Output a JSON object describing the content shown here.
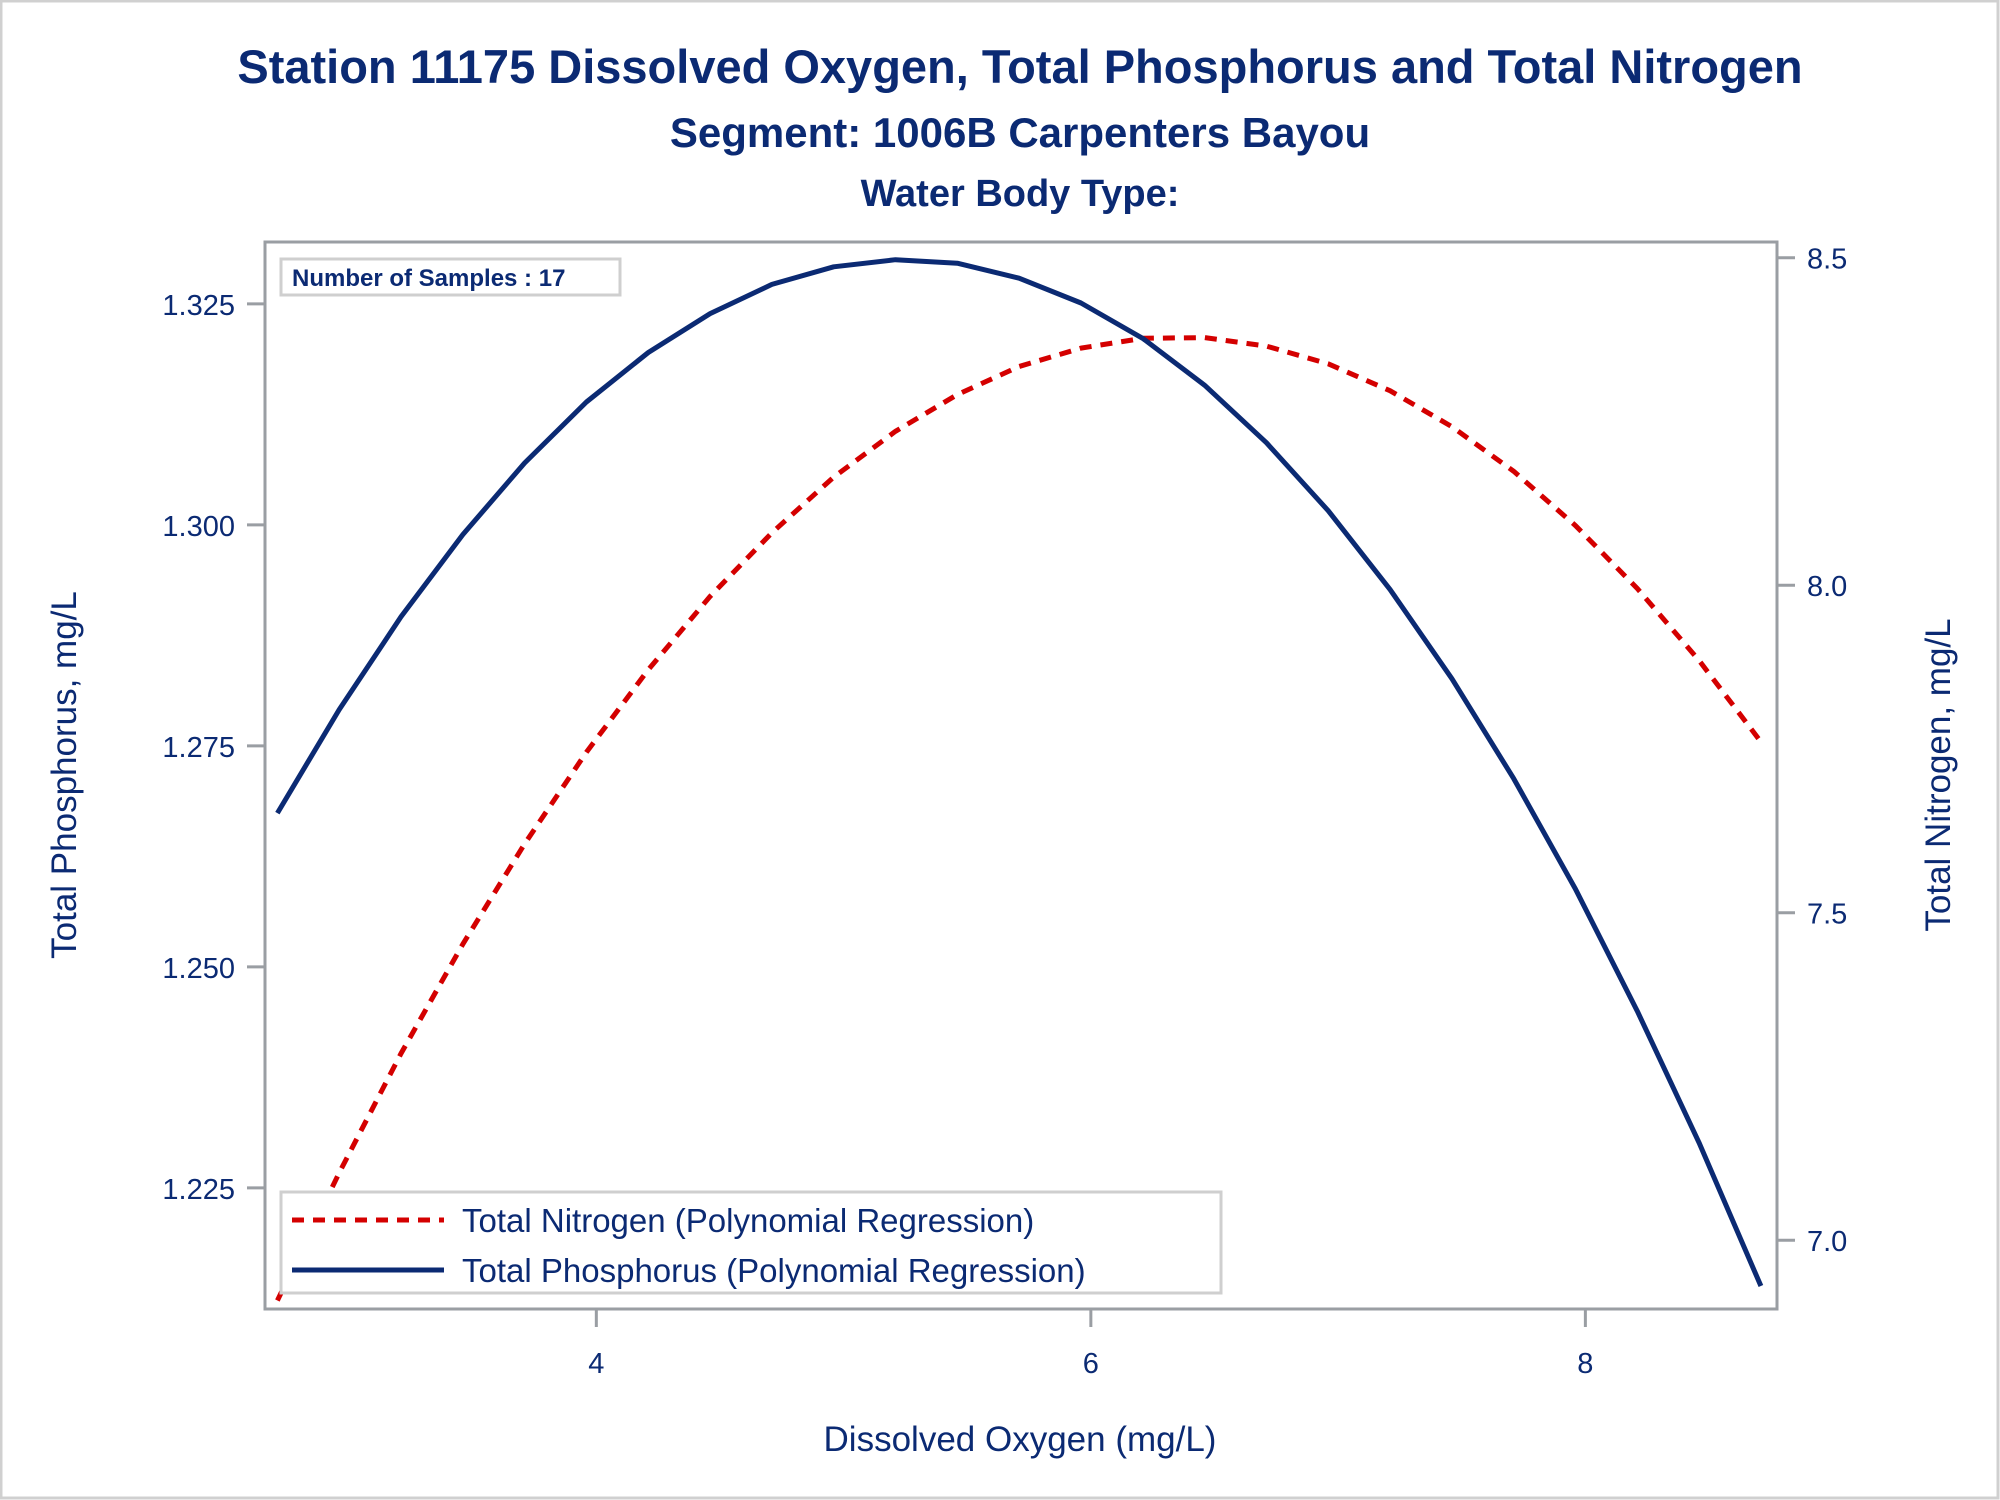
{
  "chart_data": {
    "type": "line",
    "title": "Station 11175  Dissolved Oxygen, Total Phosphorus and Total Nitrogen",
    "subtitle": "Segment: 1006B  Carpenters Bayou",
    "subtitle2": "Water Body Type:",
    "annotation": "Number of Samples : 17",
    "xlabel": "Dissolved Oxygen (mg/L)",
    "ylabel": "Total Phosphorus, mg/L",
    "y2label": "Total Nitrogen, mg/L",
    "xlim": [
      2.66,
      8.775
    ],
    "ylim": [
      1.2113,
      1.332
    ],
    "y2lim": [
      6.895,
      8.524
    ],
    "xticks": [
      "4",
      "6",
      "8"
    ],
    "yticks": [
      "1.225",
      "1.250",
      "1.275",
      "1.300",
      "1.325"
    ],
    "y2ticks": [
      "7.0",
      "7.5",
      "8.0",
      "8.5"
    ],
    "grid": false,
    "legend_position": "bottom-left",
    "x": [
      2.71,
      2.96,
      3.21,
      3.46,
      3.71,
      3.96,
      4.21,
      4.46,
      4.71,
      4.96,
      5.21,
      5.46,
      5.71,
      5.96,
      6.21,
      6.46,
      6.71,
      6.96,
      7.21,
      7.46,
      7.71,
      7.96,
      8.21,
      8.46,
      8.71
    ],
    "series": [
      {
        "name": "Total Nitrogen (Polynomial Regression)",
        "axis": "y2",
        "color": "#d40000",
        "style": "dashed",
        "values": [
          6.908,
          7.103,
          7.285,
          7.452,
          7.605,
          7.745,
          7.871,
          7.983,
          8.08,
          8.165,
          8.235,
          8.291,
          8.334,
          8.362,
          8.377,
          8.378,
          8.365,
          8.338,
          8.297,
          8.242,
          8.174,
          8.091,
          7.995,
          7.885,
          7.761
        ]
      },
      {
        "name": "Total Phosphorus (Polynomial Regression)",
        "axis": "y",
        "color": "#0b2a73",
        "style": "solid",
        "values": [
          1.2674,
          1.2791,
          1.2896,
          1.2989,
          1.307,
          1.3139,
          1.3195,
          1.3239,
          1.3272,
          1.3292,
          1.33,
          1.3296,
          1.3279,
          1.3251,
          1.3211,
          1.3158,
          1.3093,
          1.3016,
          1.2927,
          1.2826,
          1.2713,
          1.2588,
          1.245,
          1.2301,
          1.2139
        ]
      }
    ]
  }
}
